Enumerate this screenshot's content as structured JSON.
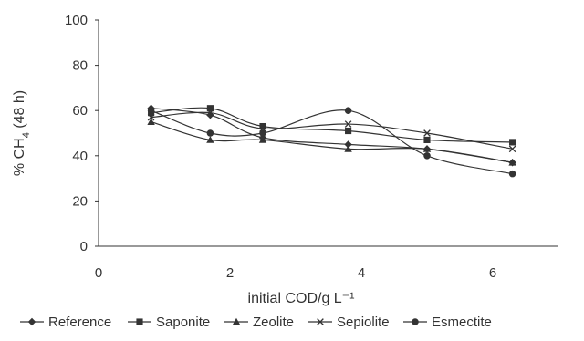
{
  "chart_data": {
    "type": "line",
    "title": "",
    "xlabel": "initial COD/g L⁻¹",
    "ylabel_main": "% CH",
    "ylabel_sub": "4",
    "ylabel_tail": " (48 h)",
    "xlim": [
      0,
      7
    ],
    "ylim": [
      0,
      100
    ],
    "xticks": [
      "0",
      "2",
      "4",
      "6"
    ],
    "yticks": [
      "0",
      "20",
      "40",
      "60",
      "80",
      "100"
    ],
    "grid": false,
    "legend_position": "bottom",
    "x": [
      0.8,
      1.7,
      2.5,
      3.8,
      5.0,
      6.3
    ],
    "series": [
      {
        "name": "Reference",
        "marker": "diamond",
        "values": [
          61,
          58,
          48,
          45,
          43,
          37
        ]
      },
      {
        "name": "Saponite",
        "marker": "square",
        "values": [
          59,
          61,
          53,
          51,
          47,
          46
        ]
      },
      {
        "name": "Zeolite",
        "marker": "triangle",
        "values": [
          55,
          47,
          47,
          43,
          43,
          37
        ]
      },
      {
        "name": "Sepiolite",
        "marker": "x",
        "values": [
          57,
          59,
          52,
          54,
          50,
          43
        ]
      },
      {
        "name": "Esmectite",
        "marker": "circle",
        "values": [
          60,
          50,
          50,
          60,
          40,
          32
        ]
      }
    ],
    "colors": {
      "series": "#333333",
      "axis": "#333333"
    }
  }
}
